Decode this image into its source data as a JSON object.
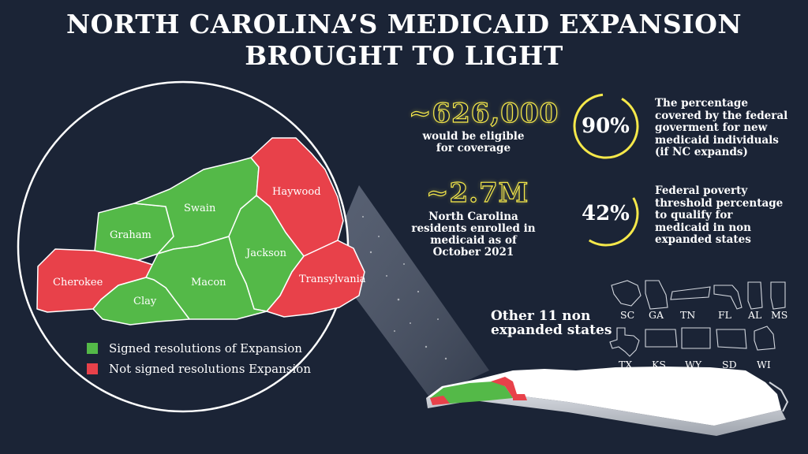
{
  "title": {
    "line1": "NORTH CAROLINA’S MEDICAID EXPANSION",
    "line2": "BROUGHT TO LIGHT"
  },
  "colors": {
    "background": "#1b2436",
    "signed": "#54b948",
    "not_signed": "#e8414a",
    "accent_yellow": "#f5e84a"
  },
  "map": {
    "counties": [
      {
        "name": "Cherokee",
        "status": "not_signed"
      },
      {
        "name": "Graham",
        "status": "signed"
      },
      {
        "name": "Swain",
        "status": "signed"
      },
      {
        "name": "Haywood",
        "status": "not_signed"
      },
      {
        "name": "Jackson",
        "status": "signed"
      },
      {
        "name": "Macon",
        "status": "signed"
      },
      {
        "name": "Clay",
        "status": "signed"
      },
      {
        "name": "Transylvania",
        "status": "not_signed"
      }
    ]
  },
  "legend": {
    "signed": "Signed resolutions of Expansion",
    "not_signed": "Not signed resolutions Expansion"
  },
  "stats": {
    "eligible": {
      "value": "~626,000",
      "caption_l1": "would be eligible",
      "caption_l2": "for coverage"
    },
    "enrolled": {
      "value": "~2.7M",
      "caption_l1": "North Carolina",
      "caption_l2": "residents enrolled in",
      "caption_l3": "medicaid as of",
      "caption_l4": "October 2021"
    }
  },
  "rings": {
    "federal": {
      "value": "90%",
      "l1": "The percentage",
      "l2": "covered by the federal",
      "l3": "goverment for new",
      "l4": "medicaid individuals",
      "l5": "(if  NC expands)"
    },
    "poverty": {
      "value": "42%",
      "l1": "Federal poverty",
      "l2": "threshold percentage",
      "l3": "to qualify for",
      "l4": "medicaid in non",
      "l5": "expanded states"
    }
  },
  "other_states": {
    "title_l1": "Other 11 non",
    "title_l2": "expanded states",
    "row1": [
      "SC",
      "GA",
      "TN",
      "FL",
      "AL",
      "MS"
    ],
    "row2": [
      "TX",
      "KS",
      "WY",
      "SD",
      "WI"
    ]
  }
}
